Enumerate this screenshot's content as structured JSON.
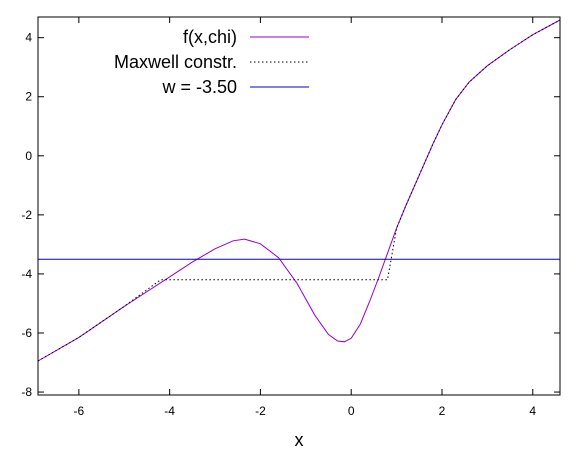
{
  "chart_data": {
    "type": "line",
    "xlabel": "x",
    "ylabel": "",
    "title": "",
    "xlim": [
      -6.9,
      4.6
    ],
    "ylim": [
      -8.1,
      4.7
    ],
    "xticks": [
      -6,
      -4,
      -2,
      0,
      2,
      4
    ],
    "yticks": [
      -8,
      -6,
      -4,
      -2,
      0,
      2,
      4
    ],
    "grid": false,
    "legend_position": "top-left",
    "series": [
      {
        "name": "f(x,chi)",
        "style": "solid",
        "color": "#9400d3",
        "x": [
          -6.9,
          -6.0,
          -5.0,
          -4.0,
          -3.5,
          -3.0,
          -2.6,
          -2.35,
          -2.0,
          -1.6,
          -1.2,
          -0.8,
          -0.5,
          -0.3,
          -0.15,
          0.0,
          0.2,
          0.4,
          0.6,
          0.8,
          1.0,
          1.2,
          1.5,
          1.8,
          2.0,
          2.3,
          2.6,
          3.0,
          3.5,
          4.0,
          4.6
        ],
        "y": [
          -6.95,
          -6.15,
          -5.1,
          -4.1,
          -3.6,
          -3.15,
          -2.88,
          -2.82,
          -2.98,
          -3.45,
          -4.3,
          -5.4,
          -6.05,
          -6.27,
          -6.3,
          -6.18,
          -5.7,
          -4.95,
          -4.15,
          -3.3,
          -2.45,
          -1.7,
          -0.65,
          0.4,
          1.05,
          1.9,
          2.5,
          3.05,
          3.6,
          4.1,
          4.6
        ]
      },
      {
        "name": "Maxwell constr.",
        "style": "dotted",
        "color": "#000000",
        "x": [
          -6.9,
          -6.0,
          -5.0,
          -4.2,
          0.8,
          1.0,
          1.2,
          1.5,
          1.8,
          2.0,
          2.3,
          2.6,
          3.0,
          3.5,
          4.0,
          4.6
        ],
        "y": [
          -6.95,
          -6.15,
          -5.1,
          -4.2,
          -4.2,
          -2.45,
          -1.7,
          -0.65,
          0.4,
          1.05,
          1.9,
          2.5,
          3.05,
          3.6,
          4.1,
          4.6
        ]
      },
      {
        "name": "w = -3.50",
        "style": "solid",
        "color": "#0000cd",
        "x": [
          -6.9,
          4.6
        ],
        "y": [
          -3.5,
          -3.5
        ]
      }
    ]
  }
}
